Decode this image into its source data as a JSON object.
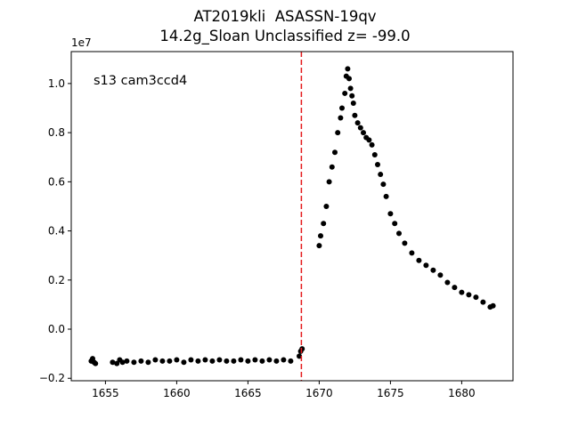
{
  "chart_data": {
    "type": "scatter",
    "title": "AT2019kli  ASASSN-19qv",
    "subtitle": "14.2g_Sloan Unclassified z= -99.0",
    "annotation": "s13 cam3ccd4",
    "y_offset_label": "1e7",
    "xlabel": "",
    "ylabel": "",
    "xlim": [
      1652.6,
      1683.6
    ],
    "ylim": [
      -0.21,
      1.13
    ],
    "y_scale_factor": 10000000,
    "x_ticks": [
      1655,
      1660,
      1665,
      1670,
      1675,
      1680
    ],
    "x_tick_labels": [
      "1655",
      "1660",
      "1665",
      "1670",
      "1675",
      "1680"
    ],
    "y_ticks": [
      -0.2,
      0.0,
      0.2,
      0.4,
      0.6,
      0.8,
      1.0
    ],
    "y_tick_labels": [
      "−0.2",
      "0.0",
      "0.2",
      "0.4",
      "0.6",
      "0.8",
      "1.0"
    ],
    "grid": false,
    "marker_color": "#000000",
    "vline": {
      "x": 1668.75,
      "color": "#e41a1c",
      "style": "dashed"
    },
    "series": [
      {
        "x": [
          1654.0,
          1654.1,
          1654.2,
          1654.3,
          1655.5,
          1655.8,
          1656.0,
          1656.2,
          1656.5,
          1657.0,
          1657.5,
          1658.0,
          1658.5,
          1659.0,
          1659.5,
          1660.0,
          1660.5,
          1661.0,
          1661.5,
          1662.0,
          1662.5,
          1663.0,
          1663.5,
          1664.0,
          1664.5,
          1665.0,
          1665.5,
          1666.0,
          1666.5,
          1667.0,
          1667.5,
          1668.0,
          1668.6,
          1668.7,
          1668.8
        ],
        "y": [
          -0.13,
          -0.12,
          -0.135,
          -0.14,
          -0.135,
          -0.14,
          -0.125,
          -0.135,
          -0.13,
          -0.135,
          -0.13,
          -0.135,
          -0.125,
          -0.13,
          -0.13,
          -0.125,
          -0.135,
          -0.125,
          -0.13,
          -0.125,
          -0.13,
          -0.125,
          -0.13,
          -0.13,
          -0.125,
          -0.13,
          -0.125,
          -0.13,
          -0.125,
          -0.13,
          -0.125,
          -0.13,
          -0.11,
          -0.09,
          -0.08
        ]
      },
      {
        "x": [
          1670.0,
          1670.1,
          1670.3,
          1670.5,
          1670.7,
          1670.9,
          1671.1,
          1671.3,
          1671.5,
          1671.6,
          1671.8,
          1671.9,
          1672.0,
          1672.1,
          1672.2,
          1672.3,
          1672.4,
          1672.5,
          1672.7,
          1672.9,
          1673.1,
          1673.3,
          1673.5,
          1673.7,
          1673.9,
          1674.1,
          1674.3,
          1674.5,
          1674.7,
          1675.0,
          1675.3,
          1675.6,
          1676.0,
          1676.5,
          1677.0,
          1677.5,
          1678.0,
          1678.5,
          1679.0,
          1679.5,
          1680.0,
          1680.5,
          1681.0,
          1681.5,
          1682.0,
          1682.2
        ],
        "y": [
          0.34,
          0.38,
          0.43,
          0.5,
          0.6,
          0.66,
          0.72,
          0.8,
          0.86,
          0.9,
          0.96,
          1.03,
          1.06,
          1.02,
          0.98,
          0.95,
          0.92,
          0.87,
          0.84,
          0.82,
          0.8,
          0.78,
          0.77,
          0.75,
          0.71,
          0.67,
          0.63,
          0.59,
          0.54,
          0.47,
          0.43,
          0.39,
          0.35,
          0.31,
          0.28,
          0.26,
          0.24,
          0.22,
          0.19,
          0.17,
          0.15,
          0.14,
          0.13,
          0.11,
          0.09,
          0.095
        ]
      }
    ]
  }
}
